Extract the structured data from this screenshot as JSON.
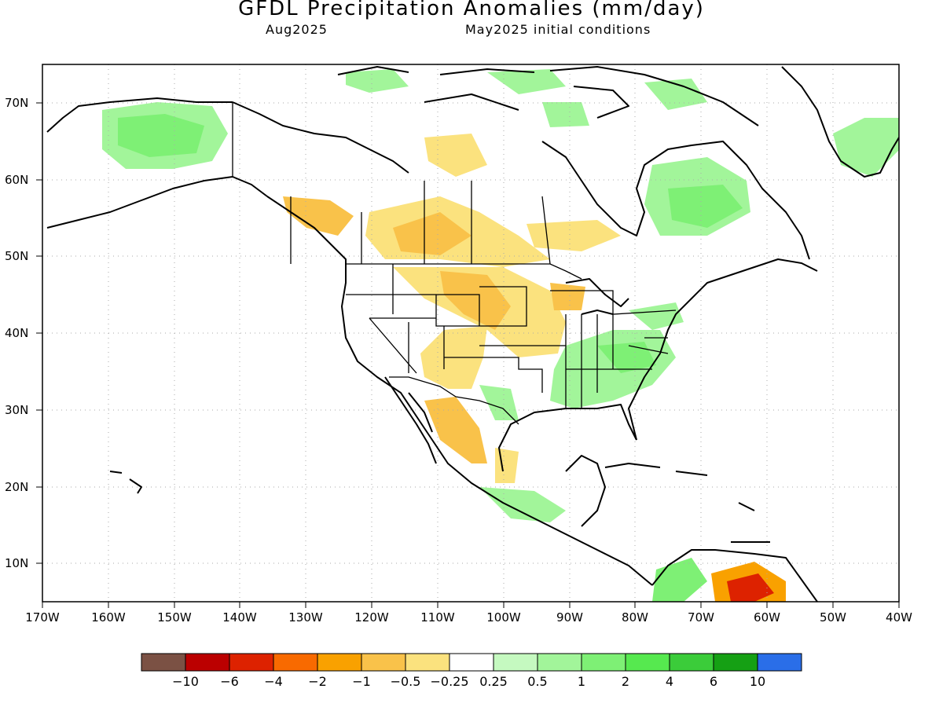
{
  "header": {
    "title": "GFDL Precipitation Anomalies (mm/day)",
    "valid_month": "Aug2025",
    "init_conditions": "May2025 initial conditions"
  },
  "map": {
    "lat_labels": [
      "70N",
      "60N",
      "50N",
      "40N",
      "30N",
      "20N",
      "10N"
    ],
    "lon_labels": [
      "170W",
      "160W",
      "150W",
      "140W",
      "130W",
      "120W",
      "110W",
      "100W",
      "90W",
      "80W",
      "70W",
      "60W",
      "50W",
      "40W"
    ],
    "lon_range": [
      -170,
      -40
    ],
    "lat_range": [
      5,
      75
    ],
    "gridlines": "dotted"
  },
  "colorbar": {
    "colors": [
      "#7b5144",
      "#bb0000",
      "#dd2200",
      "#f86a00",
      "#f9a100",
      "#f9c24a",
      "#fbe27e",
      "#ffffff",
      "#c5f9c0",
      "#a2f59a",
      "#7ef075",
      "#56e94f",
      "#3bcc3a",
      "#15a014",
      "#2a6ee8"
    ],
    "labels": [
      "−10",
      "−6",
      "−4",
      "−2",
      "−1",
      "−0.5",
      "−0.25",
      "0.25",
      "0.5",
      "1",
      "2",
      "4",
      "6",
      "10"
    ]
  }
}
